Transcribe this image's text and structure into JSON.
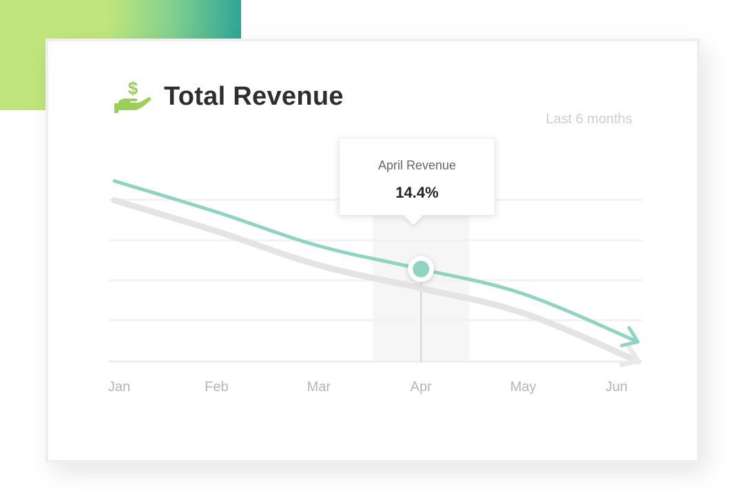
{
  "colors": {
    "accent_green": "#bfe57c",
    "accent_teal": "#2fa598",
    "line": "#8fd3c1",
    "line_shadow": "#e4e4e4",
    "icon": "#9bcf5a",
    "grid": "#f1f1f1"
  },
  "card": {
    "title": "Total Revenue",
    "icon": "money-hand-icon",
    "subtitle": "Last 6 months"
  },
  "tooltip": {
    "label": "April Revenue",
    "value": "14.4%"
  },
  "chart_data": {
    "type": "line",
    "title": "Total Revenue",
    "subtitle": "Last 6 months",
    "categories": [
      "Jan",
      "Feb",
      "Mar",
      "Apr",
      "May",
      "Jun"
    ],
    "series": [
      {
        "values": [
          30.0,
          24.5,
          18.5,
          14.4,
          10.0,
          1.5
        ]
      }
    ],
    "highlight": {
      "category": "Apr",
      "value": 14.4
    },
    "ylim": [
      -2,
      34
    ],
    "grid": true,
    "legend": "none"
  }
}
